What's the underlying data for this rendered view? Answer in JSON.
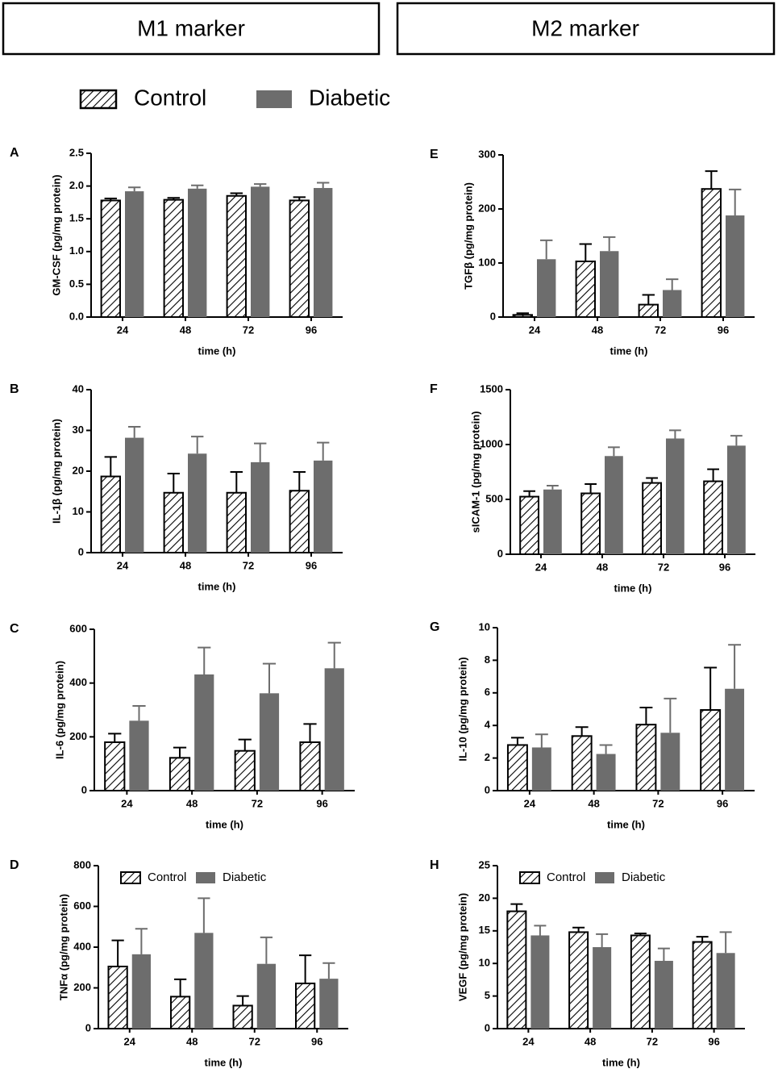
{
  "headers": [
    "M1 marker",
    "M2 marker"
  ],
  "legend": [
    {
      "name": "Control",
      "color": "#000000",
      "hatch": true
    },
    {
      "name": "Diabetic",
      "color": "#6d6d6d"
    }
  ],
  "chart_data": [
    {
      "type": "bar",
      "label": "A",
      "ylabel": "GM-CSF (pg/mg protein)",
      "xlabel": "time (h)",
      "categories": [
        "24",
        "48",
        "72",
        "96"
      ],
      "series": [
        {
          "name": "Control",
          "color": "#000000",
          "hatch": true,
          "values": [
            1.78,
            1.79,
            1.85,
            1.78
          ],
          "errors": [
            0.03,
            0.03,
            0.04,
            0.05
          ]
        },
        {
          "name": "Diabetic",
          "color": "#6d6d6d",
          "values": [
            1.92,
            1.96,
            1.99,
            1.97
          ],
          "errors": [
            0.06,
            0.05,
            0.04,
            0.08
          ]
        }
      ],
      "ylim": [
        0,
        2.5
      ],
      "yticks": [
        {
          "value": 0,
          "label": "0.0"
        },
        0.5,
        {
          "value": 1,
          "label": "1.0"
        },
        1.5,
        {
          "value": 2,
          "label": "2.0"
        },
        2.5
      ],
      "legend": false
    },
    {
      "type": "bar",
      "label": "B",
      "ylabel": "IL-1β (pg/mg protein)",
      "xlabel": "time (h)",
      "categories": [
        "24",
        "48",
        "72",
        "96"
      ],
      "series": [
        {
          "name": "Control",
          "color": "#000000",
          "hatch": true,
          "values": [
            18.7,
            14.7,
            14.7,
            15.2
          ],
          "errors": [
            4.8,
            4.7,
            5.1,
            4.6
          ]
        },
        {
          "name": "Diabetic",
          "color": "#6d6d6d",
          "values": [
            28.2,
            24.3,
            22.2,
            22.6
          ],
          "errors": [
            2.7,
            4.2,
            4.6,
            4.4
          ]
        }
      ],
      "ylim": [
        0,
        40
      ],
      "yticks": [
        0,
        10,
        20,
        30,
        40
      ],
      "legend": false
    },
    {
      "type": "bar",
      "label": "C",
      "ylabel": "IL-6 (pg/mg protein)",
      "xlabel": "time (h)",
      "categories": [
        "24",
        "48",
        "72",
        "96"
      ],
      "series": [
        {
          "name": "Control",
          "color": "#000000",
          "hatch": true,
          "values": [
            180,
            122,
            148,
            180
          ],
          "errors": [
            32,
            38,
            42,
            68
          ]
        },
        {
          "name": "Diabetic",
          "color": "#6d6d6d",
          "values": [
            260,
            432,
            362,
            455
          ],
          "errors": [
            55,
            100,
            110,
            95
          ]
        }
      ],
      "ylim": [
        0,
        600
      ],
      "yticks": [
        0,
        200,
        400,
        600
      ],
      "legend": false
    },
    {
      "type": "bar",
      "label": "D",
      "ylabel": "TNFα (pg/mg protein)",
      "xlabel": "time (h)",
      "categories": [
        "24",
        "48",
        "72",
        "96"
      ],
      "series": [
        {
          "name": "Control",
          "color": "#000000",
          "hatch": true,
          "values": [
            305,
            157,
            113,
            222
          ],
          "errors": [
            128,
            85,
            47,
            138
          ]
        },
        {
          "name": "Diabetic",
          "color": "#6d6d6d",
          "values": [
            365,
            470,
            318,
            245
          ],
          "errors": [
            125,
            170,
            130,
            77
          ]
        }
      ],
      "ylim": [
        0,
        800
      ],
      "yticks": [
        0,
        200,
        400,
        600,
        800
      ],
      "legend": "top"
    },
    {
      "type": "bar",
      "label": "E",
      "ylabel": "TGFβ (pg/mg protein)",
      "xlabel": "time (h)",
      "categories": [
        "24",
        "48",
        "72",
        "96"
      ],
      "series": [
        {
          "name": "Control",
          "color": "#000000",
          "hatch": true,
          "values": [
            4,
            103,
            23,
            237
          ],
          "errors": [
            3,
            32,
            18,
            33
          ]
        },
        {
          "name": "Diabetic",
          "color": "#6d6d6d",
          "values": [
            107,
            122,
            50,
            188
          ],
          "errors": [
            35,
            26,
            20,
            48
          ]
        }
      ],
      "ylim": [
        0,
        300
      ],
      "yticks": [
        0,
        100,
        200,
        300
      ],
      "legend": false
    },
    {
      "type": "bar",
      "label": "F",
      "ylabel": "sICAM-1 (pg/mg protein)",
      "xlabel": "time (h)",
      "categories": [
        "24",
        "48",
        "72",
        "96"
      ],
      "series": [
        {
          "name": "Control",
          "color": "#000000",
          "hatch": true,
          "values": [
            525,
            555,
            650,
            665
          ],
          "errors": [
            50,
            85,
            45,
            110
          ]
        },
        {
          "name": "Diabetic",
          "color": "#6d6d6d",
          "values": [
            590,
            895,
            1055,
            990
          ],
          "errors": [
            35,
            80,
            75,
            90
          ]
        }
      ],
      "ylim": [
        0,
        1500
      ],
      "yticks": [
        0,
        500,
        1000,
        1500
      ],
      "legend": false
    },
    {
      "type": "bar",
      "label": "G",
      "ylabel": "IL-10 (pg/mg protein)",
      "xlabel": "time (h)",
      "categories": [
        "24",
        "48",
        "72",
        "96"
      ],
      "series": [
        {
          "name": "Control",
          "color": "#000000",
          "hatch": true,
          "values": [
            2.8,
            3.35,
            4.05,
            4.95
          ],
          "errors": [
            0.45,
            0.55,
            1.05,
            2.6
          ]
        },
        {
          "name": "Diabetic",
          "color": "#6d6d6d",
          "values": [
            2.65,
            2.25,
            3.55,
            6.25
          ],
          "errors": [
            0.8,
            0.55,
            2.1,
            2.7
          ]
        }
      ],
      "ylim": [
        0,
        10
      ],
      "yticks": [
        0,
        2,
        4,
        6,
        8,
        10
      ],
      "legend": false
    },
    {
      "type": "bar",
      "label": "H",
      "ylabel": "VEGF (pg/mg protein)",
      "xlabel": "time (h)",
      "categories": [
        "24",
        "48",
        "72",
        "96"
      ],
      "series": [
        {
          "name": "Control",
          "color": "#000000",
          "hatch": true,
          "values": [
            18.0,
            14.8,
            14.3,
            13.3
          ],
          "errors": [
            1.1,
            0.7,
            0.3,
            0.8
          ]
        },
        {
          "name": "Diabetic",
          "color": "#6d6d6d",
          "values": [
            14.3,
            12.5,
            10.4,
            11.6
          ],
          "errors": [
            1.5,
            2.0,
            1.9,
            3.2
          ]
        }
      ],
      "ylim": [
        0,
        25
      ],
      "yticks": [
        0,
        5,
        10,
        15,
        20,
        25
      ],
      "legend": "top"
    }
  ]
}
